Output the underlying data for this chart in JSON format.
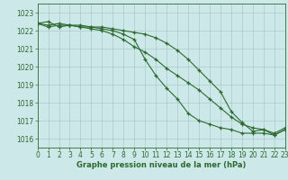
{
  "xlabel": "Graphe pression niveau de la mer (hPa)",
  "ylim": [
    1015.5,
    1023.5
  ],
  "xlim": [
    0,
    23
  ],
  "yticks": [
    1016,
    1017,
    1018,
    1019,
    1020,
    1021,
    1022,
    1023
  ],
  "xticks": [
    0,
    1,
    2,
    3,
    4,
    5,
    6,
    7,
    8,
    9,
    10,
    11,
    12,
    13,
    14,
    15,
    16,
    17,
    18,
    19,
    20,
    21,
    22,
    23
  ],
  "background_color": "#cce8e8",
  "grid_color": "#aacccc",
  "line_color": "#2d6a2d",
  "line1": [
    1022.4,
    1022.5,
    1022.2,
    1022.3,
    1022.2,
    1022.2,
    1022.1,
    1022.0,
    1021.8,
    1021.5,
    1020.4,
    1019.5,
    1018.8,
    1018.2,
    1017.4,
    1017.0,
    1016.8,
    1016.6,
    1016.5,
    1016.3,
    1016.3,
    1016.3,
    1016.2,
    1016.5
  ],
  "line2": [
    1022.4,
    1022.2,
    1022.3,
    1022.3,
    1022.2,
    1022.1,
    1022.0,
    1021.8,
    1021.5,
    1021.1,
    1020.8,
    1020.4,
    1019.9,
    1019.5,
    1019.1,
    1018.7,
    1018.2,
    1017.7,
    1017.2,
    1016.8,
    1016.6,
    1016.5,
    1016.2,
    1016.5
  ],
  "line3": [
    1022.4,
    1022.3,
    1022.4,
    1022.3,
    1022.3,
    1022.2,
    1022.2,
    1022.1,
    1022.0,
    1021.9,
    1021.8,
    1021.6,
    1021.3,
    1020.9,
    1020.4,
    1019.8,
    1019.2,
    1018.6,
    1017.5,
    1016.9,
    1016.4,
    1016.5,
    1016.3,
    1016.6
  ],
  "xlabel_fontsize": 6,
  "tick_fontsize": 5.5
}
